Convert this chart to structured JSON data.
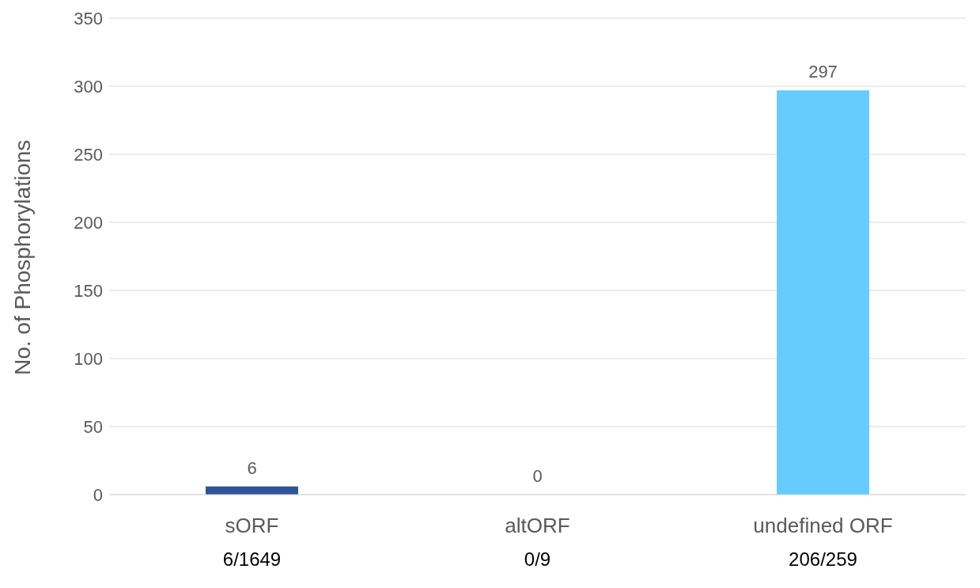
{
  "chart_data": {
    "type": "bar",
    "ylabel": "No. of Phosphorylations",
    "categories": [
      "sORF\n6/1649",
      "altORF\n0/9",
      "undefined ORF\n206/259"
    ],
    "values": [
      6,
      0,
      297
    ],
    "colors": [
      "#2f5597",
      "#4472c4",
      "#66ccff"
    ],
    "ylim": [
      0,
      350
    ],
    "yticks": [
      0,
      50,
      100,
      150,
      200,
      250,
      300,
      350
    ],
    "grid": "y",
    "data_labels": true
  }
}
